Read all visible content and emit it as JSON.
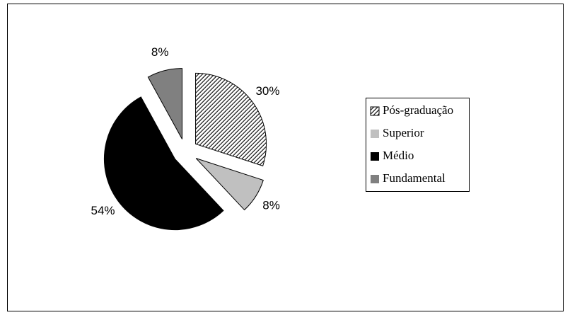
{
  "chart_data": {
    "type": "pie",
    "categories": [
      "Pós-graduação",
      "Superior",
      "Médio",
      "Fundamental"
    ],
    "values": [
      30,
      8,
      54,
      8
    ],
    "value_labels": [
      "30%",
      "8%",
      "54%",
      "8%"
    ],
    "colors": [
      "#ffffff",
      "#c0c0c0",
      "#000000",
      "#808080"
    ],
    "hatch": [
      true,
      false,
      false,
      false
    ],
    "exploded": true,
    "legend": "right"
  }
}
